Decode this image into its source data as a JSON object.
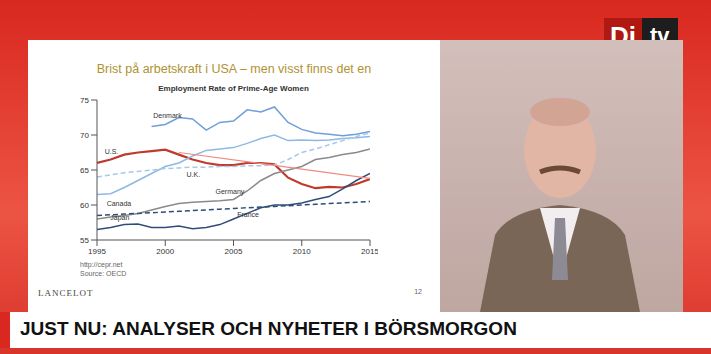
{
  "chart_data": {
    "type": "line",
    "title": "Employment Rate of Prime-Age Women",
    "x": [
      1995,
      1996,
      1997,
      1998,
      1999,
      2000,
      2001,
      2002,
      2003,
      2004,
      2005,
      2006,
      2007,
      2008,
      2009,
      2010,
      2011,
      2012,
      2013,
      2014,
      2015
    ],
    "xlim": [
      1995,
      2015
    ],
    "xticks": [
      1995,
      2000,
      2005,
      2010,
      2015
    ],
    "ylim": [
      55,
      75
    ],
    "yticks": [
      55,
      60,
      65,
      70,
      75
    ],
    "grid": false,
    "series": [
      {
        "name": "Denmark",
        "color": "#6f9fd8",
        "line_style": "solid",
        "values": [
          null,
          null,
          null,
          null,
          71.2,
          71.5,
          72.5,
          72.3,
          70.7,
          71.8,
          72.0,
          73.6,
          73.3,
          74.0,
          71.8,
          70.8,
          70.3,
          70.1,
          69.9,
          70.1,
          70.5
        ]
      },
      {
        "name": "U.S.",
        "color": "#c0392b",
        "line_style": "solid",
        "values": [
          66.0,
          66.5,
          67.2,
          67.5,
          67.7,
          67.9,
          67.2,
          66.5,
          66.0,
          65.7,
          65.7,
          66.0,
          66.0,
          65.8,
          63.9,
          63.0,
          62.4,
          62.6,
          62.5,
          63.0,
          63.7
        ]
      },
      {
        "name": "Canada",
        "color": "#8fb8e3",
        "line_style": "solid",
        "values": [
          61.5,
          61.6,
          62.5,
          63.5,
          64.5,
          65.5,
          66.0,
          67.0,
          67.8,
          68.0,
          68.2,
          68.8,
          69.5,
          70.0,
          69.2,
          69.3,
          69.2,
          69.3,
          69.5,
          69.6,
          69.8
        ]
      },
      {
        "name": "U.K.",
        "color": "#a8c8ea",
        "line_style": "dashed",
        "values": [
          64.0,
          64.3,
          64.6,
          64.8,
          65.0,
          65.2,
          65.3,
          65.4,
          65.4,
          65.5,
          65.5,
          65.6,
          65.6,
          65.7,
          66.5,
          67.5,
          68.0,
          68.6,
          69.2,
          69.8,
          70.3
        ]
      },
      {
        "name": "Germany",
        "color": "#8a8a8a",
        "line_style": "solid",
        "values": [
          58.0,
          58.3,
          58.5,
          58.8,
          59.3,
          59.8,
          60.2,
          60.4,
          60.5,
          60.6,
          60.8,
          62.0,
          63.5,
          64.5,
          65.0,
          65.5,
          66.5,
          66.8,
          67.2,
          67.5,
          68.0
        ]
      },
      {
        "name": "France",
        "color": "#2e4d7a",
        "line_style": "dashed",
        "values": [
          58.5,
          58.6,
          58.7,
          58.8,
          58.9,
          59.0,
          59.1,
          59.2,
          59.3,
          59.4,
          59.5,
          59.6,
          59.7,
          59.8,
          59.9,
          60.0,
          60.1,
          60.2,
          60.3,
          60.4,
          60.5
        ]
      },
      {
        "name": "Japan",
        "color": "#2e4d7a",
        "line_style": "solid",
        "values": [
          56.5,
          56.8,
          57.2,
          57.3,
          56.8,
          56.8,
          57.0,
          56.6,
          56.8,
          57.2,
          58.0,
          58.8,
          59.6,
          60.0,
          60.0,
          60.3,
          60.8,
          61.2,
          62.3,
          63.5,
          64.5
        ]
      }
    ],
    "annotations": [
      {
        "type": "line",
        "x": [
          2001,
          2015
        ],
        "values": [
          67.5,
          63.8
        ],
        "color": "#f08a80",
        "line_style": "solid"
      }
    ]
  },
  "slide": {
    "heading": "Brist på arbetskraft i USA – men visst finns det en",
    "source": [
      "http://cepr.net",
      "Source: OECD"
    ],
    "logo": "LANCELOT",
    "page": "12"
  },
  "banner": "JUST NU: ANALYSER OCH NYHETER I BÖRSMORGON",
  "channel_logo": [
    "Di",
    "tv"
  ]
}
